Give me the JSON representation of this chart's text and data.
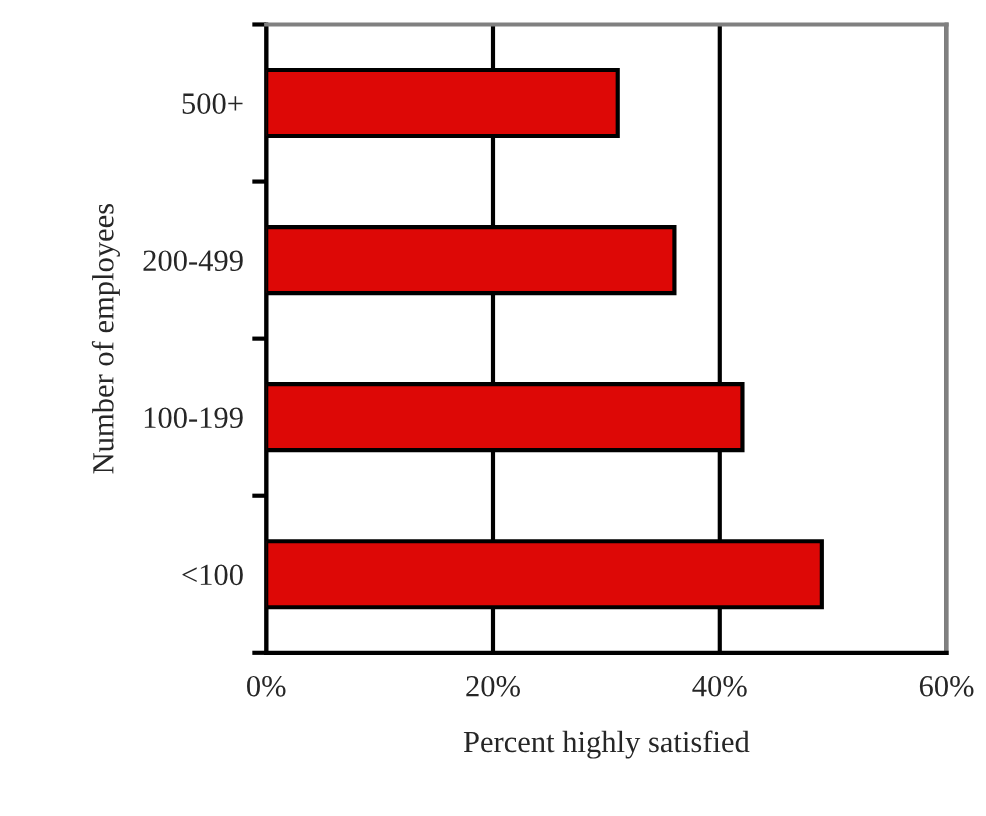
{
  "chart_data": {
    "type": "bar",
    "orientation": "horizontal",
    "categories": [
      "500+",
      "200-499",
      "100-199",
      "<100"
    ],
    "values": [
      31,
      36,
      42,
      49
    ],
    "color": "#dd0806",
    "xlabel": "Percent highly satisfied",
    "ylabel": "Number of employees",
    "xlim": [
      0,
      60
    ],
    "xticks": [
      {
        "value": 0,
        "label": "0%"
      },
      {
        "value": 20,
        "label": "20%"
      },
      {
        "value": 40,
        "label": "40%"
      },
      {
        "value": 60,
        "label": "60%"
      }
    ],
    "grid": "x",
    "legend": false
  }
}
